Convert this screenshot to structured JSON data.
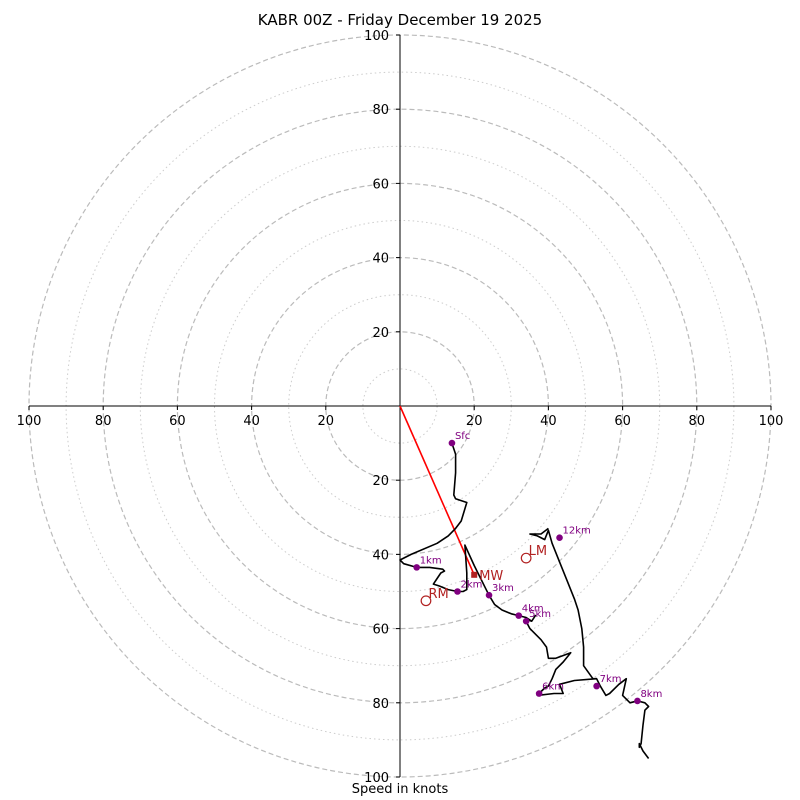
{
  "chart_data": {
    "type": "hodograph",
    "title": "KABR 00Z - Friday December 19 2025",
    "xlabel": "Speed in knots",
    "ylabel": "",
    "xlim": [
      -100,
      100
    ],
    "ylim": [
      -100,
      100
    ],
    "ring_major_knots": [
      20,
      40,
      60,
      80,
      100
    ],
    "ring_minor_knots": [
      10,
      30,
      50,
      70,
      90
    ],
    "x_tick_labels": [
      "100",
      "80",
      "60",
      "40",
      "20",
      "20",
      "40",
      "60",
      "80",
      "100"
    ],
    "x_tick_values": [
      -100,
      -80,
      -60,
      -40,
      -20,
      20,
      40,
      60,
      80,
      100
    ],
    "y_tick_labels": [
      "100",
      "80",
      "60",
      "40",
      "20",
      "20",
      "40",
      "60",
      "80",
      "100"
    ],
    "y_tick_values": [
      100,
      80,
      60,
      40,
      20,
      -20,
      -40,
      -60,
      -80,
      -100
    ],
    "hodograph_trace": [
      [
        14,
        -10
      ],
      [
        15,
        -13
      ],
      [
        15,
        -18
      ],
      [
        14.5,
        -24
      ],
      [
        15,
        -25
      ],
      [
        18,
        -26
      ],
      [
        16.5,
        -31
      ],
      [
        15,
        -33
      ],
      [
        13,
        -35
      ],
      [
        10,
        -37
      ],
      [
        3,
        -40
      ],
      [
        0,
        -41.5
      ],
      [
        1,
        -42.5
      ],
      [
        4.5,
        -43.5
      ],
      [
        8,
        -43.5
      ],
      [
        11.5,
        -44
      ],
      [
        12,
        -44.5
      ],
      [
        11,
        -45
      ],
      [
        10,
        -46.5
      ],
      [
        9,
        -48
      ],
      [
        10.5,
        -48.5
      ],
      [
        13,
        -49.5
      ],
      [
        15.5,
        -50
      ],
      [
        17,
        -50
      ],
      [
        18,
        -49.5
      ],
      [
        18,
        -45
      ],
      [
        17.5,
        -37.5
      ],
      [
        20,
        -43
      ],
      [
        22,
        -47
      ],
      [
        23,
        -49
      ],
      [
        24,
        -51
      ],
      [
        25.5,
        -53.5
      ],
      [
        27.5,
        -55
      ],
      [
        30,
        -56
      ],
      [
        32,
        -56.5
      ],
      [
        34,
        -57
      ],
      [
        35.5,
        -58
      ],
      [
        36.5,
        -56.5
      ],
      [
        35.5,
        -58
      ],
      [
        34,
        -57.5
      ],
      [
        34,
        -58
      ],
      [
        35,
        -60
      ],
      [
        38,
        -63
      ],
      [
        39.5,
        -65
      ],
      [
        40,
        -68
      ],
      [
        42,
        -68
      ],
      [
        46,
        -66.5
      ],
      [
        44,
        -69
      ],
      [
        42,
        -71
      ],
      [
        41,
        -73.5
      ],
      [
        40,
        -75.5
      ],
      [
        39,
        -76
      ],
      [
        37.5,
        -77.5
      ],
      [
        37,
        -78
      ],
      [
        41.5,
        -77.5
      ],
      [
        44,
        -77.5
      ],
      [
        43,
        -75
      ],
      [
        47,
        -74
      ],
      [
        53,
        -73.5
      ],
      [
        54,
        -75.5
      ],
      [
        55.5,
        -78
      ],
      [
        56.5,
        -77.5
      ],
      [
        59,
        -75
      ],
      [
        61,
        -73.5
      ],
      [
        60,
        -78
      ],
      [
        62,
        -80
      ],
      [
        64,
        -79.5
      ],
      [
        66,
        -80
      ],
      [
        67,
        -81
      ],
      [
        66,
        -82
      ],
      [
        65.5,
        -86
      ],
      [
        65,
        -91
      ],
      [
        64.5,
        -92
      ],
      [
        64.5,
        -91
      ],
      [
        65.5,
        -93
      ],
      [
        67,
        -95
      ]
    ],
    "upper_trace": [
      [
        40,
        -33
      ],
      [
        38,
        -34.5
      ],
      [
        35,
        -34.5
      ],
      [
        37,
        -35
      ],
      [
        39,
        -36
      ],
      [
        40,
        -33.5
      ],
      [
        41,
        -37
      ],
      [
        43,
        -42
      ],
      [
        45,
        -47
      ],
      [
        47,
        -52
      ],
      [
        48,
        -55
      ],
      [
        49,
        -60
      ],
      [
        49.5,
        -65
      ],
      [
        49.5,
        -70
      ],
      [
        52,
        -73.5
      ],
      [
        53,
        -73.5
      ]
    ],
    "height_markers": [
      {
        "label": "Sfc",
        "u": 14,
        "v": -10
      },
      {
        "label": "1km",
        "u": 4.5,
        "v": -43.5
      },
      {
        "label": "2km",
        "u": 15.5,
        "v": -50
      },
      {
        "label": "3km",
        "u": 24,
        "v": -51
      },
      {
        "label": "4km",
        "u": 32,
        "v": -56.5
      },
      {
        "label": "5km",
        "u": 34,
        "v": -58
      },
      {
        "label": "6km",
        "u": 37.5,
        "v": -77.5
      },
      {
        "label": "7km",
        "u": 53,
        "v": -75.5
      },
      {
        "label": "8km",
        "u": 64,
        "v": -79.5
      },
      {
        "label": "12km",
        "u": 43,
        "v": -35.5
      }
    ],
    "storm_motion": [
      {
        "label": "LM",
        "u": 34,
        "v": -41
      },
      {
        "label": "RM",
        "u": 7,
        "v": -52.5
      }
    ],
    "mean_wind": {
      "label": "MW",
      "u": 20,
      "v": -45.5
    },
    "colors": {
      "trace": "#000000",
      "marker": "#800080",
      "storm_motion": "#b22222",
      "mean_wind_vector": "#ff0000",
      "ring_major": "#bbbbbb",
      "ring_minor": "#cccccc"
    }
  }
}
